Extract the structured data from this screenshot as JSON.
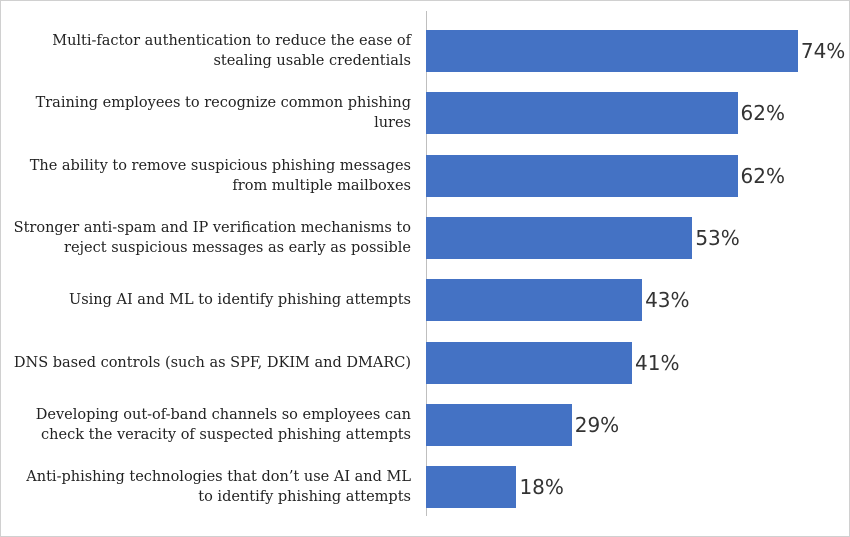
{
  "chart_data": {
    "type": "bar",
    "orientation": "horizontal",
    "categories": [
      "Multi-factor authentication to reduce the ease of stealing usable credentials",
      "Training employees to recognize common phishing lures",
      "The ability to remove suspicious phishing messages from multiple mailboxes",
      "Stronger anti-spam and IP verification mechanisms to reject suspicious messages as early as possible",
      "Using AI and ML to identify phishing attempts",
      "DNS based controls (such as SPF, DKIM and DMARC)",
      "Developing out-of-band channels so employees can check the veracity of suspected phishing attempts",
      "Anti-phishing technologies that don’t use AI and ML to identify phishing attempts"
    ],
    "values": [
      74,
      62,
      62,
      53,
      43,
      41,
      29,
      18
    ],
    "value_labels": [
      "74%",
      "62%",
      "62%",
      "53%",
      "43%",
      "41%",
      "29%",
      "18%"
    ],
    "color": "#4472c4",
    "xlim": [
      0,
      80
    ]
  }
}
